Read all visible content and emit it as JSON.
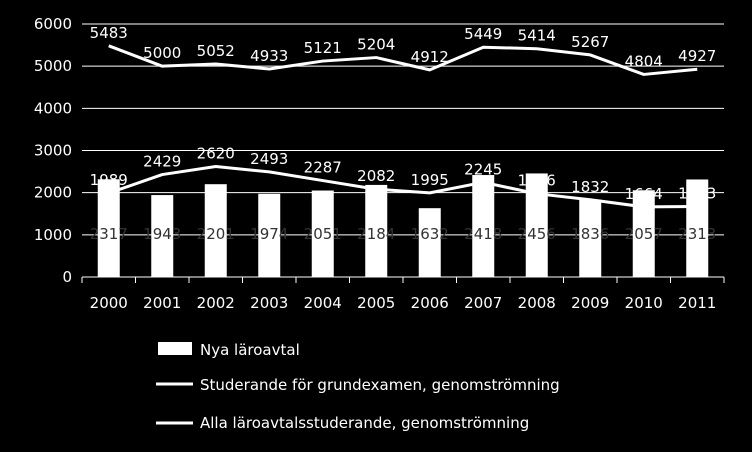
{
  "chart_data": {
    "type": "bar",
    "categories": [
      "2000",
      "2001",
      "2002",
      "2003",
      "2004",
      "2005",
      "2006",
      "2007",
      "2008",
      "2009",
      "2010",
      "2011"
    ],
    "ylim": [
      0,
      6000
    ],
    "yticks": [
      "0",
      "1000",
      "2000",
      "3000",
      "4000",
      "5000",
      "6000"
    ],
    "grid": true,
    "legend_position": "bottom",
    "colors": {
      "background": "#000000",
      "bars": "#ffffff",
      "lines": "#ffffff",
      "grid": "#ffffff",
      "bar_label": "#333333"
    },
    "series": [
      {
        "name": "Nya läroavtal",
        "kind": "bar",
        "values": [
          2317,
          1943,
          2201,
          1974,
          2051,
          2184,
          1632,
          2418,
          2456,
          1836,
          2057,
          2313
        ],
        "labels": [
          "2317",
          "1943",
          "2201",
          "1974",
          "2051",
          "2184",
          "1632",
          "2418",
          "2456",
          "1836",
          "2057",
          "2313"
        ]
      },
      {
        "name": "Studerande för grundexamen, genomströmning",
        "kind": "line",
        "values": [
          1989,
          2429,
          2620,
          2493,
          2287,
          2082,
          1995,
          2245,
          1976,
          1832,
          1664,
          1673
        ],
        "labels": [
          "1989",
          "2429",
          "2620",
          "2493",
          "2287",
          "2082",
          "1995",
          "2245",
          "1976",
          "1832",
          "1664",
          "1673"
        ]
      },
      {
        "name": "Alla läroavtalsstuderande, genomströmning",
        "kind": "line",
        "values": [
          5483,
          5000,
          5052,
          4933,
          5121,
          5204,
          4912,
          5449,
          5414,
          5267,
          4804,
          4927
        ],
        "labels": [
          "5483",
          "5000",
          "5052",
          "4933",
          "5121",
          "5204",
          "4912",
          "5449",
          "5414",
          "5267",
          "4804",
          "4927"
        ]
      }
    ]
  }
}
